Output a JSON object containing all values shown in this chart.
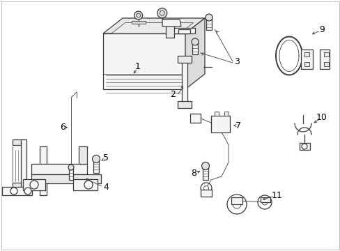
{
  "background_color": "#ffffff",
  "line_color": "#3a3a3a",
  "label_color": "#000000",
  "figsize": [
    4.89,
    3.6
  ],
  "dpi": 100,
  "border_color": "#cccccc",
  "component_fill": "#f5f5f5",
  "component_fill2": "#e8e8e8",
  "lw_thin": 0.6,
  "lw_med": 0.9,
  "lw_thick": 1.4,
  "font_size": 8,
  "font_size_label": 9
}
